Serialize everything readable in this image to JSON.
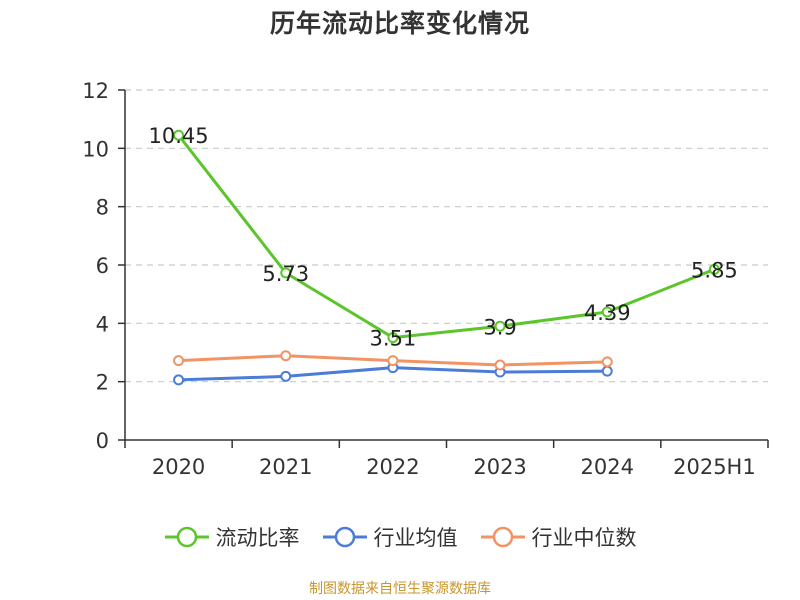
{
  "title": "历年流动比率变化情况",
  "source": "制图数据来自恒生聚源数据库",
  "colors": {
    "current_ratio": "#5cc52b",
    "industry_mean": "#4b7dd8",
    "industry_median": "#f39363",
    "grid": "#c9c9c9",
    "axis": "#333333",
    "source": "#c8962c"
  },
  "chart_data": {
    "type": "line",
    "categories": [
      "2020",
      "2021",
      "2022",
      "2023",
      "2024",
      "2025H1"
    ],
    "ylim": [
      0,
      12
    ],
    "yticks": [
      0,
      2,
      4,
      6,
      8,
      10,
      12
    ],
    "grid": true,
    "legend_position": "bottom",
    "series": [
      {
        "name": "流动比率",
        "key": "current_ratio",
        "values": [
          10.45,
          5.73,
          3.51,
          3.9,
          4.39,
          5.85
        ],
        "labels": [
          "10.45",
          "5.73",
          "3.51",
          "3.9",
          "4.39",
          "5.85"
        ],
        "show_labels": true
      },
      {
        "name": "行业均值",
        "key": "industry_mean",
        "values": [
          2.06,
          2.18,
          2.48,
          2.33,
          2.36,
          null
        ],
        "show_labels": false
      },
      {
        "name": "行业中位数",
        "key": "industry_median",
        "values": [
          2.72,
          2.89,
          2.72,
          2.57,
          2.68,
          null
        ],
        "show_labels": false
      }
    ]
  }
}
